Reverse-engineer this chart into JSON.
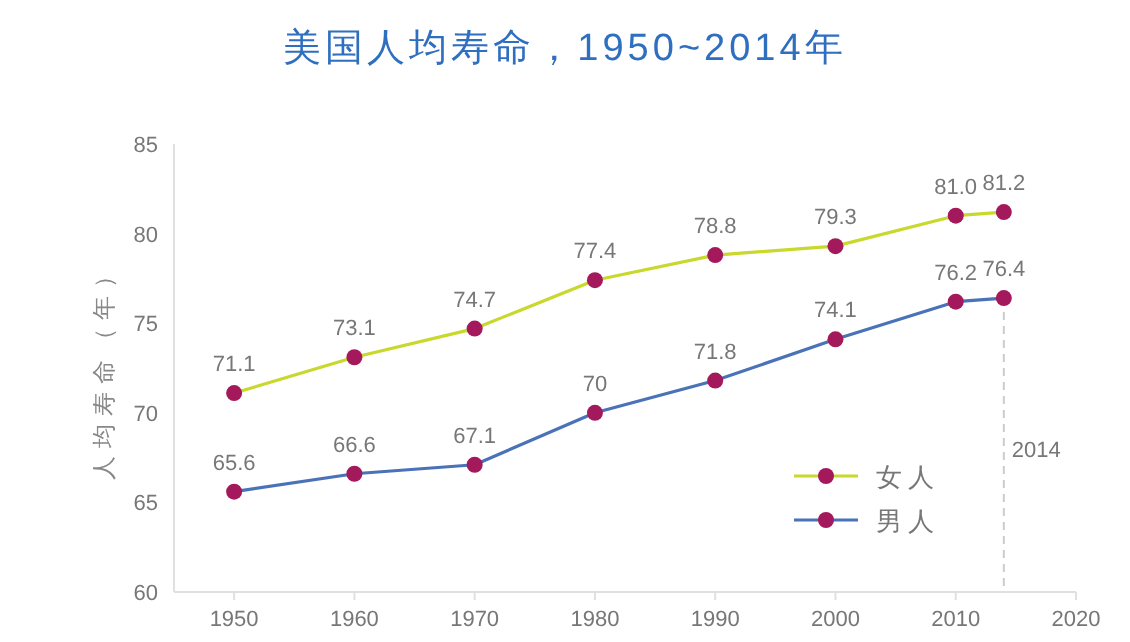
{
  "chart_data": {
    "type": "line",
    "title": "美国人均寿命，1950~2014年",
    "ylabel": "人均寿命（年）",
    "x": [
      1950,
      1960,
      1970,
      1980,
      1990,
      2000,
      2010,
      2014
    ],
    "series": [
      {
        "name": "女人",
        "color": "#c9d82c",
        "colors": [
          "#a3195b",
          "#a3195b",
          "#a3195b",
          "#a3195b",
          "#a3195b",
          "#a3195b",
          "#a3195b",
          "#a3195b"
        ],
        "values": [
          71.1,
          73.1,
          74.7,
          77.4,
          78.8,
          79.3,
          81.0,
          81.2
        ],
        "value_labels": [
          "71.1",
          "73.1",
          "74.7",
          "77.4",
          "78.8",
          "79.3",
          "81.0",
          "81.2"
        ]
      },
      {
        "name": "男人",
        "color": "#4a72b8",
        "colors": [
          "#a3195b",
          "#a3195b",
          "#a3195b",
          "#a3195b",
          "#a3195b",
          "#a3195b",
          "#a3195b",
          "#a3195b"
        ],
        "values": [
          65.6,
          66.6,
          67.1,
          70,
          71.8,
          74.1,
          76.2,
          76.4
        ],
        "value_labels": [
          "65.6",
          "66.6",
          "67.1",
          "70",
          "71.8",
          "74.1",
          "76.2",
          "76.4"
        ]
      }
    ],
    "xlim": [
      1945,
      2020
    ],
    "xticks": [
      1950,
      1960,
      1970,
      1980,
      1990,
      2000,
      2010,
      2020
    ],
    "ylim": [
      60,
      85
    ],
    "yticks": [
      60,
      65,
      70,
      75,
      80,
      85
    ],
    "ref_lines": [
      {
        "axis": "x",
        "value": 2014,
        "label": "2014",
        "color": "#cccccc",
        "line_style": "dashed"
      }
    ],
    "grid": false,
    "legend": "bottom right",
    "marker": "circle",
    "line_style": "solid"
  }
}
